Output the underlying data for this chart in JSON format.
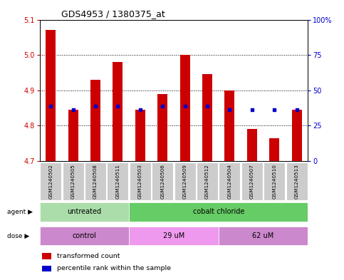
{
  "title": "GDS4953 / 1380375_at",
  "samples": [
    "GSM1240502",
    "GSM1240505",
    "GSM1240508",
    "GSM1240511",
    "GSM1240503",
    "GSM1240506",
    "GSM1240509",
    "GSM1240512",
    "GSM1240504",
    "GSM1240507",
    "GSM1240510",
    "GSM1240513"
  ],
  "bar_values": [
    5.07,
    4.845,
    4.93,
    4.98,
    4.845,
    4.89,
    5.0,
    4.945,
    4.9,
    4.79,
    4.765,
    4.845
  ],
  "blue_dot_values": [
    4.855,
    4.845,
    4.855,
    4.855,
    4.845,
    4.855,
    4.855,
    4.855,
    4.845,
    4.845,
    4.845,
    4.845
  ],
  "bar_bottom": 4.7,
  "ylim": [
    4.7,
    5.1
  ],
  "yticks_left": [
    4.7,
    4.8,
    4.9,
    5.0,
    5.1
  ],
  "yticks_right": [
    0,
    25,
    50,
    75,
    100
  ],
  "yticks_right_labels": [
    "0",
    "25",
    "50",
    "75",
    "100%"
  ],
  "bar_color": "#cc0000",
  "dot_color": "#0000cc",
  "agent_groups": [
    {
      "label": "untreated",
      "start": 0,
      "end": 4,
      "color": "#aaddaa"
    },
    {
      "label": "cobalt chloride",
      "start": 4,
      "end": 12,
      "color": "#66cc66"
    }
  ],
  "dose_groups": [
    {
      "label": "control",
      "start": 0,
      "end": 4,
      "color": "#cc88cc"
    },
    {
      "label": "29 uM",
      "start": 4,
      "end": 8,
      "color": "#ee99ee"
    },
    {
      "label": "62 uM",
      "start": 8,
      "end": 12,
      "color": "#cc88cc"
    }
  ],
  "legend_items": [
    {
      "label": "transformed count",
      "color": "#cc0000"
    },
    {
      "label": "percentile rank within the sample",
      "color": "#0000cc"
    }
  ],
  "tick_label_color_left": "#cc0000",
  "tick_label_color_right": "#0000cc",
  "bar_width": 0.45,
  "x_bg_color": "#cccccc"
}
